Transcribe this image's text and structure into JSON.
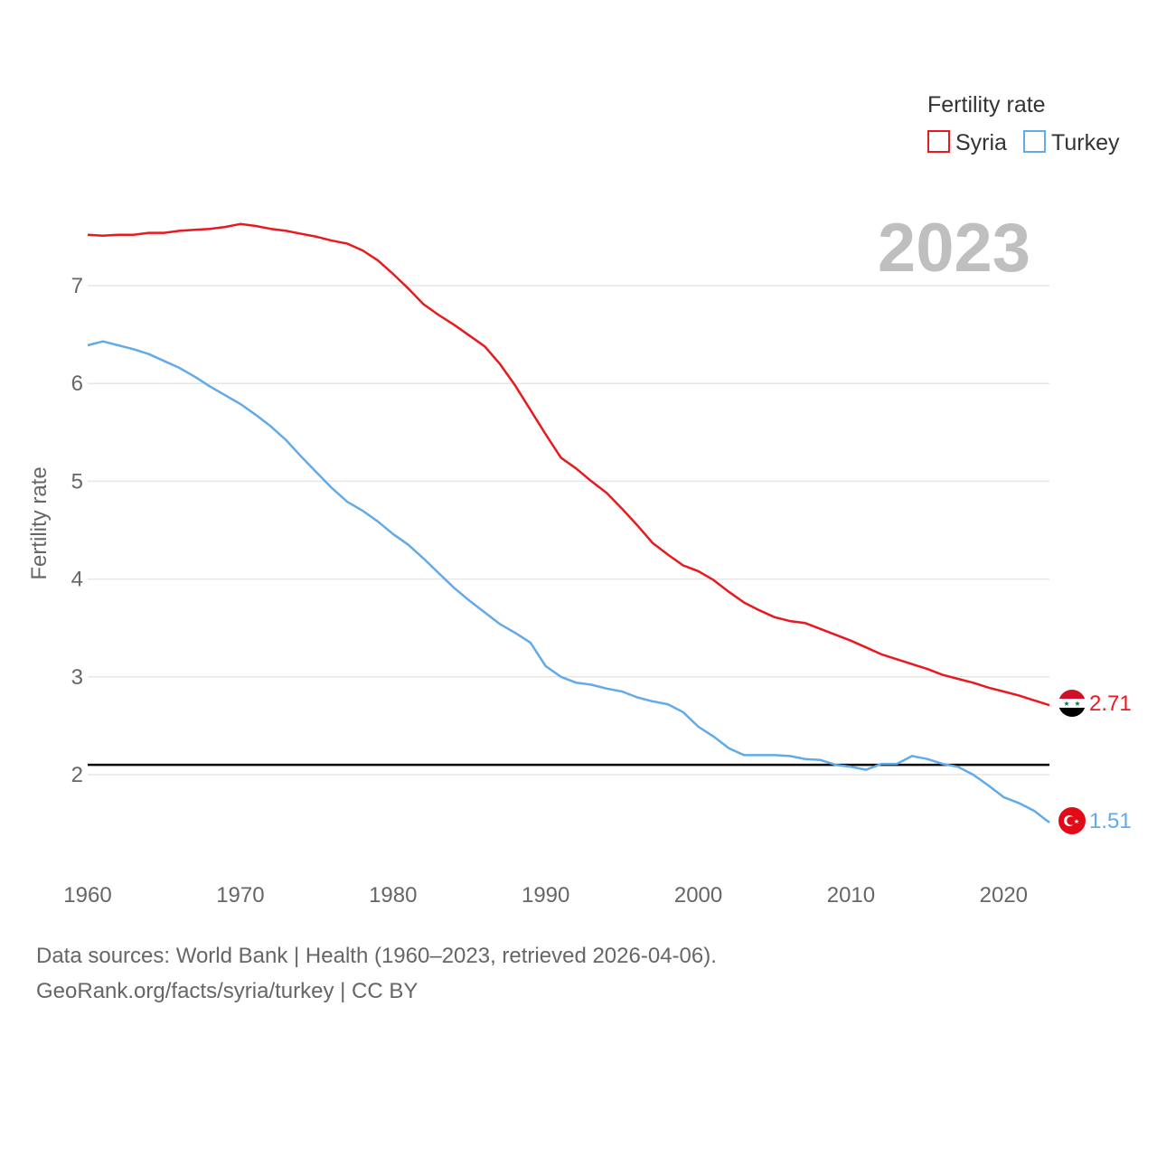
{
  "chart_data": {
    "type": "line",
    "ylabel": "Fertility rate",
    "xlabel": "",
    "current_year": "2023",
    "xlim": [
      1960,
      2023
    ],
    "ylim": [
      1.0,
      7.9
    ],
    "x_ticks": [
      1960,
      1970,
      1980,
      1990,
      2000,
      2010,
      2020
    ],
    "y_ticks": [
      2,
      3,
      4,
      5,
      6,
      7
    ],
    "grid": true,
    "legend": {
      "title": "Fertility rate",
      "placement": "top-right"
    },
    "reference_line": {
      "y": 2.1,
      "color": "#000000"
    },
    "x": [
      1960,
      1961,
      1962,
      1963,
      1964,
      1965,
      1966,
      1967,
      1968,
      1969,
      1970,
      1971,
      1972,
      1973,
      1974,
      1975,
      1976,
      1977,
      1978,
      1979,
      1980,
      1981,
      1982,
      1983,
      1984,
      1985,
      1986,
      1987,
      1988,
      1989,
      1990,
      1991,
      1992,
      1993,
      1994,
      1995,
      1996,
      1997,
      1998,
      1999,
      2000,
      2001,
      2002,
      2003,
      2004,
      2005,
      2006,
      2007,
      2008,
      2009,
      2010,
      2011,
      2012,
      2013,
      2014,
      2015,
      2016,
      2017,
      2018,
      2019,
      2020,
      2021,
      2022,
      2023
    ],
    "series": [
      {
        "name": "Syria",
        "color": "#e8191f",
        "flag": "syria-flag",
        "end_label": "2.71",
        "values": [
          7.52,
          7.51,
          7.52,
          7.52,
          7.54,
          7.54,
          7.56,
          7.57,
          7.58,
          7.6,
          7.63,
          7.61,
          7.58,
          7.56,
          7.53,
          7.5,
          7.46,
          7.43,
          7.36,
          7.26,
          7.12,
          6.97,
          6.81,
          6.7,
          6.6,
          6.49,
          6.38,
          6.2,
          5.98,
          5.73,
          5.48,
          5.24,
          5.13,
          5.0,
          4.88,
          4.72,
          4.55,
          4.37,
          4.25,
          4.14,
          4.08,
          3.99,
          3.87,
          3.76,
          3.68,
          3.61,
          3.57,
          3.55,
          3.49,
          3.43,
          3.37,
          3.3,
          3.23,
          3.18,
          3.13,
          3.08,
          3.02,
          2.98,
          2.94,
          2.89,
          2.85,
          2.81,
          2.76,
          2.71
        ]
      },
      {
        "name": "Turkey",
        "color": "#62aae8",
        "flag": "turkey-flag",
        "end_label": "1.51",
        "values": [
          6.39,
          6.43,
          6.39,
          6.35,
          6.3,
          6.23,
          6.16,
          6.07,
          5.97,
          5.88,
          5.79,
          5.68,
          5.56,
          5.42,
          5.25,
          5.09,
          4.93,
          4.79,
          4.7,
          4.59,
          4.46,
          4.35,
          4.21,
          4.06,
          3.91,
          3.78,
          3.66,
          3.54,
          3.45,
          3.35,
          3.11,
          3.0,
          2.94,
          2.92,
          2.88,
          2.85,
          2.79,
          2.75,
          2.72,
          2.64,
          2.49,
          2.39,
          2.27,
          2.2,
          2.2,
          2.2,
          2.19,
          2.16,
          2.15,
          2.1,
          2.08,
          2.05,
          2.11,
          2.11,
          2.19,
          2.16,
          2.11,
          2.08,
          2.0,
          1.89,
          1.77,
          1.71,
          1.63,
          1.51
        ]
      }
    ]
  },
  "footer": {
    "line1": "Data sources: World Bank | Health (1960–2023, retrieved 2026-04-06).",
    "line2": "GeoRank.org/facts/syria/turkey | CC BY"
  }
}
